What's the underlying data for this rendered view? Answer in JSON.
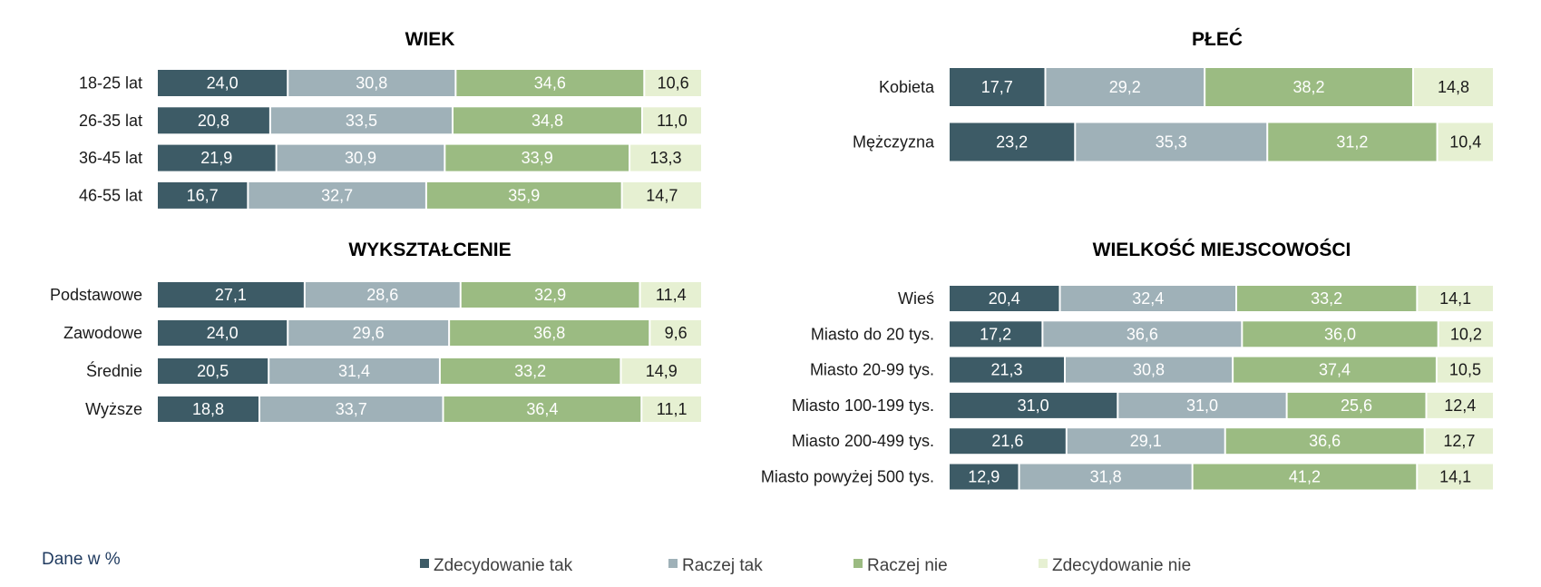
{
  "note": "Dane w %",
  "colors": {
    "zdecydowanie_tak": "#3d5b66",
    "raczej_tak": "#9fb1b8",
    "raczej_nie": "#9bbb82",
    "zdecydowanie_nie": "#e6f0d2"
  },
  "legend": [
    {
      "label": "Zdecydowanie tak",
      "color": "#3d5b66"
    },
    {
      "label": "Raczej tak",
      "color": "#9fb1b8"
    },
    {
      "label": "Raczej nie",
      "color": "#9bbb82"
    },
    {
      "label": "Zdecydowanie nie",
      "color": "#e6f0d2"
    }
  ],
  "chart_data": [
    {
      "type": "bar",
      "stacked": true,
      "orientation": "horizontal",
      "title": "WIEK",
      "categories": [
        "18-25 lat",
        "26-35 lat",
        "36-45 lat",
        "46-55 lat"
      ],
      "series": [
        {
          "name": "Zdecydowanie tak",
          "values": [
            24.0,
            20.8,
            21.9,
            16.7
          ],
          "labels": [
            "24,0",
            "20,8",
            "21,9",
            "16,7"
          ]
        },
        {
          "name": "Raczej tak",
          "values": [
            30.8,
            33.5,
            30.9,
            32.7
          ],
          "labels": [
            "30,8",
            "33,5",
            "30,9",
            "32,7"
          ]
        },
        {
          "name": "Raczej nie",
          "values": [
            34.6,
            34.8,
            33.9,
            35.9
          ],
          "labels": [
            "34,6",
            "34,8",
            "33,9",
            "35,9"
          ]
        },
        {
          "name": "Zdecydowanie nie",
          "values": [
            10.6,
            11.0,
            13.3,
            14.7
          ],
          "labels": [
            "10,6",
            "11,0",
            "13,3",
            "14,7"
          ]
        }
      ]
    },
    {
      "type": "bar",
      "stacked": true,
      "orientation": "horizontal",
      "title": "PŁEĆ",
      "categories": [
        "Kobieta",
        "Mężczyzna"
      ],
      "series": [
        {
          "name": "Zdecydowanie tak",
          "values": [
            17.7,
            23.2
          ],
          "labels": [
            "17,7",
            "23,2"
          ]
        },
        {
          "name": "Raczej tak",
          "values": [
            29.2,
            35.3
          ],
          "labels": [
            "29,2",
            "35,3"
          ]
        },
        {
          "name": "Raczej nie",
          "values": [
            38.2,
            31.2
          ],
          "labels": [
            "38,2",
            "31,2"
          ]
        },
        {
          "name": "Zdecydowanie nie",
          "values": [
            14.8,
            10.4
          ],
          "labels": [
            "14,8",
            "10,4"
          ]
        }
      ]
    },
    {
      "type": "bar",
      "stacked": true,
      "orientation": "horizontal",
      "title": "WYKSZTAŁCENIE",
      "categories": [
        "Podstawowe",
        "Zawodowe",
        "Średnie",
        "Wyższe"
      ],
      "series": [
        {
          "name": "Zdecydowanie tak",
          "values": [
            27.1,
            24.0,
            20.5,
            18.8
          ],
          "labels": [
            "27,1",
            "24,0",
            "20,5",
            "18,8"
          ]
        },
        {
          "name": "Raczej tak",
          "values": [
            28.6,
            29.6,
            31.4,
            33.7
          ],
          "labels": [
            "28,6",
            "29,6",
            "31,4",
            "33,7"
          ]
        },
        {
          "name": "Raczej nie",
          "values": [
            32.9,
            36.8,
            33.2,
            36.4
          ],
          "labels": [
            "32,9",
            "36,8",
            "33,2",
            "36,4"
          ]
        },
        {
          "name": "Zdecydowanie nie",
          "values": [
            11.4,
            9.6,
            14.9,
            11.1
          ],
          "labels": [
            "11,4",
            "9,6",
            "14,9",
            "11,1"
          ]
        }
      ]
    },
    {
      "type": "bar",
      "stacked": true,
      "orientation": "horizontal",
      "title": "WIELKOŚĆ MIEJSCOWOŚCI",
      "categories": [
        "Wieś",
        "Miasto do 20 tys.",
        "Miasto 20-99 tys.",
        "Miasto 100-199 tys.",
        "Miasto 200-499 tys.",
        "Miasto powyżej 500 tys."
      ],
      "series": [
        {
          "name": "Zdecydowanie tak",
          "values": [
            20.4,
            17.2,
            21.3,
            31.0,
            21.6,
            12.9
          ],
          "labels": [
            "20,4",
            "17,2",
            "21,3",
            "31,0",
            "21,6",
            "12,9"
          ]
        },
        {
          "name": "Raczej tak",
          "values": [
            32.4,
            36.6,
            30.8,
            31.0,
            29.1,
            31.8
          ],
          "labels": [
            "32,4",
            "36,6",
            "30,8",
            "31,0",
            "29,1",
            "31,8"
          ]
        },
        {
          "name": "Raczej nie",
          "values": [
            33.2,
            36.0,
            37.4,
            25.6,
            36.6,
            41.2
          ],
          "labels": [
            "33,2",
            "36,0",
            "37,4",
            "25,6",
            "36,6",
            "41,2"
          ]
        },
        {
          "name": "Zdecydowanie nie",
          "values": [
            14.1,
            10.2,
            10.5,
            12.4,
            12.7,
            14.1
          ],
          "labels": [
            "14,1",
            "10,2",
            "10,5",
            "12,4",
            "12,7",
            "14,1"
          ]
        }
      ]
    }
  ]
}
